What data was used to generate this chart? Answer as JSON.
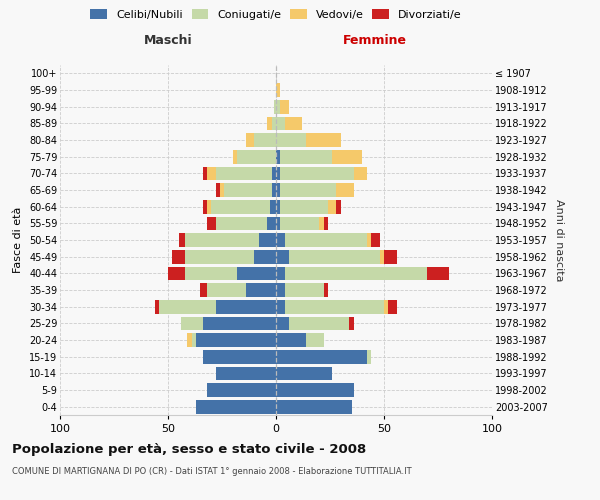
{
  "age_groups": [
    "0-4",
    "5-9",
    "10-14",
    "15-19",
    "20-24",
    "25-29",
    "30-34",
    "35-39",
    "40-44",
    "45-49",
    "50-54",
    "55-59",
    "60-64",
    "65-69",
    "70-74",
    "75-79",
    "80-84",
    "85-89",
    "90-94",
    "95-99",
    "100+"
  ],
  "birth_years": [
    "2003-2007",
    "1998-2002",
    "1993-1997",
    "1988-1992",
    "1983-1987",
    "1978-1982",
    "1973-1977",
    "1968-1972",
    "1963-1967",
    "1958-1962",
    "1953-1957",
    "1948-1952",
    "1943-1947",
    "1938-1942",
    "1933-1937",
    "1928-1932",
    "1923-1927",
    "1918-1922",
    "1913-1917",
    "1908-1912",
    "≤ 1907"
  ],
  "males": {
    "celibe": [
      37,
      32,
      28,
      34,
      37,
      34,
      28,
      14,
      18,
      10,
      8,
      4,
      3,
      2,
      2,
      0,
      0,
      0,
      0,
      0,
      0
    ],
    "coniugato": [
      0,
      0,
      0,
      0,
      2,
      10,
      26,
      18,
      24,
      32,
      34,
      24,
      27,
      22,
      26,
      18,
      10,
      2,
      1,
      0,
      0
    ],
    "vedovo": [
      0,
      0,
      0,
      0,
      2,
      0,
      0,
      0,
      0,
      0,
      0,
      0,
      2,
      2,
      4,
      2,
      4,
      2,
      0,
      0,
      0
    ],
    "divorziato": [
      0,
      0,
      0,
      0,
      0,
      0,
      2,
      3,
      8,
      6,
      3,
      4,
      2,
      2,
      2,
      0,
      0,
      0,
      0,
      0,
      0
    ]
  },
  "females": {
    "nubile": [
      35,
      36,
      26,
      42,
      14,
      6,
      4,
      4,
      4,
      6,
      4,
      2,
      2,
      2,
      2,
      2,
      0,
      0,
      0,
      0,
      0
    ],
    "coniugata": [
      0,
      0,
      0,
      2,
      8,
      28,
      46,
      18,
      66,
      42,
      38,
      18,
      22,
      26,
      34,
      24,
      14,
      4,
      2,
      0,
      0
    ],
    "vedova": [
      0,
      0,
      0,
      0,
      0,
      0,
      2,
      0,
      0,
      2,
      2,
      2,
      4,
      8,
      6,
      14,
      16,
      8,
      4,
      2,
      0
    ],
    "divorziata": [
      0,
      0,
      0,
      0,
      0,
      2,
      4,
      2,
      10,
      6,
      4,
      2,
      2,
      0,
      0,
      0,
      0,
      0,
      0,
      0,
      0
    ]
  },
  "colors": {
    "celibe": "#4472a8",
    "coniugato": "#c5d9a8",
    "vedovo": "#f5c96a",
    "divorziato": "#cc2020"
  },
  "xlim": 100,
  "title": "Popolazione per età, sesso e stato civile - 2008",
  "subtitle": "COMUNE DI MARTIGNANA DI PO (CR) - Dati ISTAT 1° gennaio 2008 - Elaborazione TUTTITALIA.IT",
  "ylabel": "Fasce di età",
  "ylabel_right": "Anni di nascita",
  "xlabel_left": "Maschi",
  "xlabel_right": "Femmine",
  "bg_color": "#f8f8f8",
  "grid_color": "#cccccc"
}
